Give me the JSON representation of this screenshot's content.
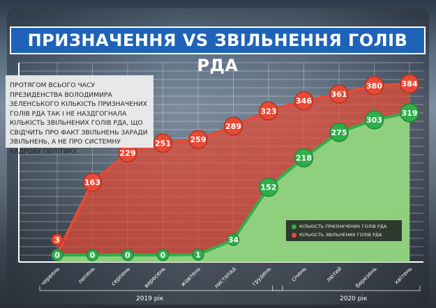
{
  "chart_data": {
    "type": "area",
    "title": "ПРИЗНАЧЕННЯ VS ЗВІЛЬНЕННЯ ГОЛІВ РДА",
    "categories": [
      "червень",
      "липень",
      "серпень",
      "вересень",
      "жовтень",
      "листопад",
      "грудень",
      "січень",
      "лютий",
      "березень",
      "квітень"
    ],
    "year_groups": [
      {
        "label": "2019 рік",
        "from": 0,
        "to": 6
      },
      {
        "label": "2020 рік",
        "from": 7,
        "to": 10
      }
    ],
    "series": [
      {
        "name": "КІЛЬКІСТЬ ЗВІЛЬНЕНИХ ГОЛІВ РДА",
        "color": "#e74a35",
        "values": [
          3,
          163,
          229,
          251,
          259,
          289,
          323,
          346,
          361,
          380,
          384
        ]
      },
      {
        "name": "КІЛЬКІСТЬ ПРИЗНАЧЕНИХ ГОЛІВ РДА",
        "color": "#2fae4a",
        "values": [
          0,
          0,
          0,
          0,
          1,
          34,
          152,
          218,
          275,
          303,
          319
        ]
      }
    ],
    "ylim": [
      0,
      400
    ],
    "grid": true,
    "legend": "bottom-right"
  },
  "note": "Протягом всього часу президенства Володимира Зеленського кількість призначених голів РДА так і не наздгогнала кількість звільнених голів РДА, що свідчить про факт звільнень заради звільнень, а не про системну кадрову політику."
}
